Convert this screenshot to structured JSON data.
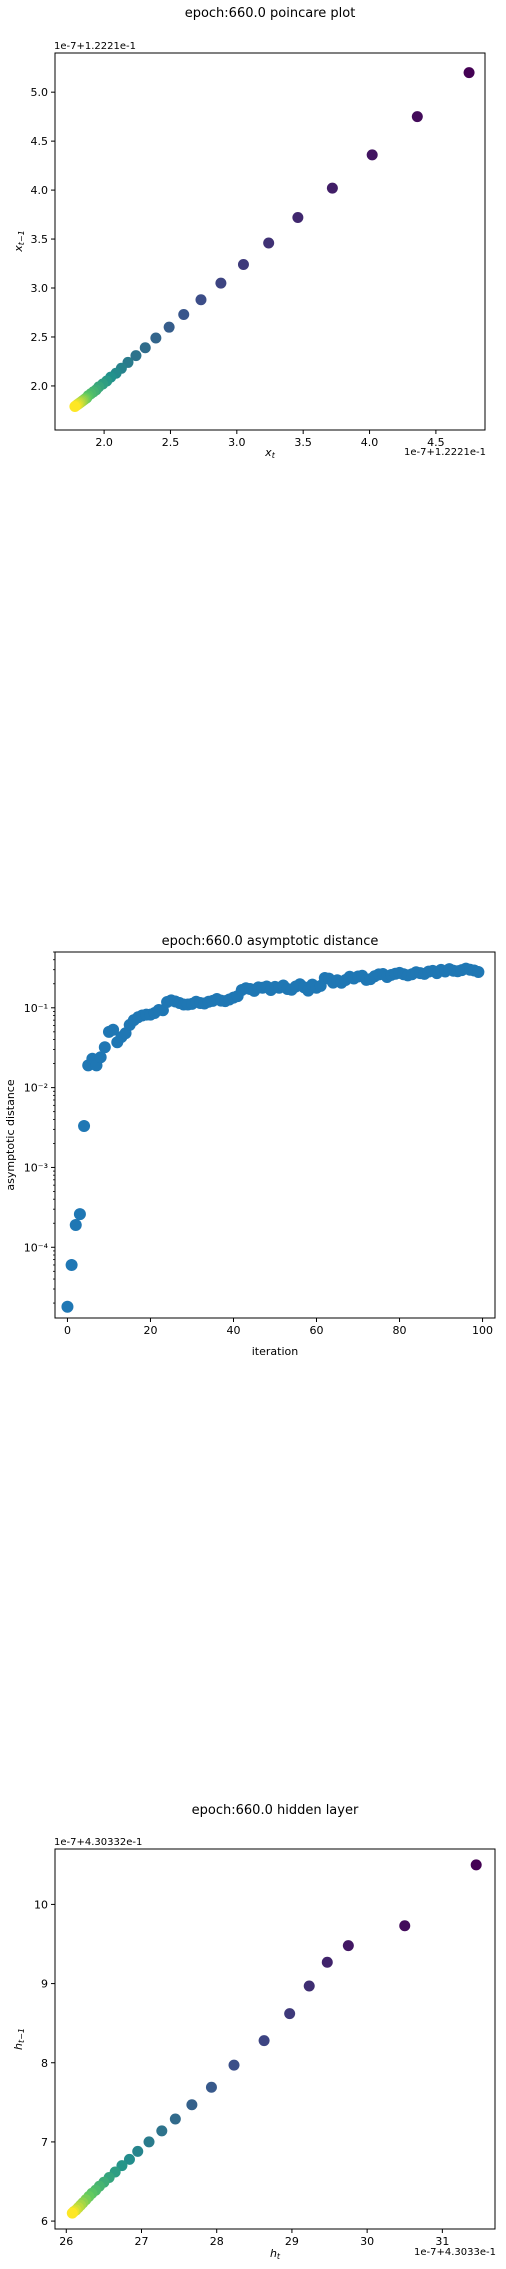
{
  "chart_data": [
    {
      "type": "scatter",
      "title": "epoch:660.0 poincare plot",
      "xlabel": "x_t",
      "ylabel": "x_{t-1}",
      "x_offset_text": "1e-7+1.2221e-1",
      "y_offset_text": "1e-7+1.2221e-1",
      "xlim": [
        1.63,
        4.87
      ],
      "ylim": [
        1.55,
        5.4
      ],
      "xticks": [
        2.0,
        2.5,
        3.0,
        3.5,
        4.0,
        4.5
      ],
      "xtick_labels": [
        "2.0",
        "2.5",
        "3.0",
        "3.5",
        "4.0",
        "4.5"
      ],
      "yticks": [
        2.0,
        2.5,
        3.0,
        3.5,
        4.0,
        4.5,
        5.0
      ],
      "ytick_labels": [
        "2.0",
        "2.5",
        "3.0",
        "3.5",
        "4.0",
        "4.5",
        "5.0"
      ],
      "colormap": "viridis",
      "x": [
        4.75,
        4.36,
        4.02,
        3.72,
        3.46,
        3.24,
        3.05,
        2.88,
        2.73,
        2.6,
        2.49,
        2.39,
        2.31,
        2.24,
        2.18,
        2.13,
        2.09,
        2.05,
        2.02,
        1.99,
        1.96,
        1.94,
        1.92,
        1.9,
        1.88,
        1.87,
        1.86,
        1.85,
        1.84,
        1.83,
        1.82,
        1.81,
        1.8,
        1.79,
        1.78
      ],
      "y": [
        5.2,
        4.75,
        4.36,
        4.02,
        3.72,
        3.46,
        3.24,
        3.05,
        2.88,
        2.73,
        2.6,
        2.49,
        2.39,
        2.31,
        2.24,
        2.18,
        2.13,
        2.09,
        2.05,
        2.02,
        1.99,
        1.96,
        1.94,
        1.92,
        1.9,
        1.88,
        1.87,
        1.86,
        1.85,
        1.84,
        1.83,
        1.82,
        1.81,
        1.8,
        1.79
      ]
    },
    {
      "type": "scatter",
      "title": "epoch:660.0 asymptotic distance",
      "xlabel": "iteration",
      "ylabel": "asymptotic distance",
      "yscale": "log",
      "xlim": [
        -3,
        103
      ],
      "ylim": [
        1.3e-05,
        0.5
      ],
      "xticks": [
        0,
        20,
        40,
        60,
        80,
        100
      ],
      "xtick_labels": [
        "0",
        "20",
        "40",
        "60",
        "80",
        "100"
      ],
      "yticks": [
        0.0001,
        0.001,
        0.01,
        0.1
      ],
      "ytick_labels": [
        "10⁻⁴",
        "10⁻³",
        "10⁻²",
        "10⁻¹"
      ],
      "color": "#1f77b4",
      "x": [
        0,
        1,
        2,
        3,
        4,
        5,
        6,
        7,
        8,
        9,
        10,
        11,
        12,
        13,
        14,
        15,
        16,
        17,
        18,
        19,
        20,
        21,
        22,
        23,
        24,
        25,
        26,
        27,
        28,
        29,
        30,
        31,
        32,
        33,
        34,
        35,
        36,
        37,
        38,
        39,
        40,
        41,
        42,
        43,
        44,
        45,
        46,
        47,
        48,
        49,
        50,
        51,
        52,
        53,
        54,
        55,
        56,
        57,
        58,
        59,
        60,
        61,
        62,
        63,
        64,
        65,
        66,
        67,
        68,
        69,
        70,
        71,
        72,
        73,
        74,
        75,
        76,
        77,
        78,
        79,
        80,
        81,
        82,
        83,
        84,
        85,
        86,
        87,
        88,
        89,
        90,
        91,
        92,
        93,
        94,
        95,
        96,
        97,
        98,
        99
      ],
      "y": [
        1.8e-05,
        6e-05,
        0.00019,
        0.00026,
        0.0033,
        0.019,
        0.023,
        0.019,
        0.024,
        0.032,
        0.05,
        0.053,
        0.037,
        0.043,
        0.048,
        0.061,
        0.07,
        0.076,
        0.08,
        0.082,
        0.082,
        0.086,
        0.094,
        0.093,
        0.118,
        0.124,
        0.12,
        0.115,
        0.11,
        0.11,
        0.112,
        0.119,
        0.115,
        0.113,
        0.119,
        0.122,
        0.129,
        0.123,
        0.121,
        0.127,
        0.134,
        0.14,
        0.167,
        0.176,
        0.172,
        0.163,
        0.18,
        0.178,
        0.185,
        0.167,
        0.183,
        0.178,
        0.19,
        0.172,
        0.168,
        0.185,
        0.197,
        0.181,
        0.164,
        0.195,
        0.178,
        0.188,
        0.236,
        0.232,
        0.207,
        0.221,
        0.206,
        0.223,
        0.245,
        0.233,
        0.247,
        0.252,
        0.224,
        0.229,
        0.248,
        0.262,
        0.265,
        0.243,
        0.258,
        0.267,
        0.274,
        0.263,
        0.255,
        0.263,
        0.279,
        0.272,
        0.266,
        0.284,
        0.29,
        0.272,
        0.299,
        0.285,
        0.305,
        0.291,
        0.287,
        0.296,
        0.309,
        0.3,
        0.293,
        0.281
      ]
    },
    {
      "type": "scatter",
      "title": "epoch:660.0 hidden layer",
      "xlabel": "h_t",
      "ylabel": "h_{t-1}",
      "x_offset_text": "1e-7+4.3033e-1",
      "y_offset_text": "1e-7+4.30332e-1",
      "xlim": [
        25.85,
        31.7
      ],
      "ylim": [
        5.9,
        10.7
      ],
      "xticks": [
        26,
        27,
        28,
        29,
        30,
        31
      ],
      "xtick_labels": [
        "26",
        "27",
        "28",
        "29",
        "30",
        "31"
      ],
      "yticks": [
        6,
        7,
        8,
        9,
        10
      ],
      "ytick_labels": [
        "6",
        "7",
        "8",
        "9",
        "10"
      ],
      "colormap": "viridis",
      "x": [
        31.45,
        30.5,
        29.75,
        29.47,
        29.23,
        28.97,
        28.63,
        28.23,
        27.93,
        27.67,
        27.45,
        27.27,
        27.1,
        26.95,
        26.84,
        26.74,
        26.65,
        26.57,
        26.5,
        26.44,
        26.39,
        26.34,
        26.3,
        26.26,
        26.22,
        26.19,
        26.16,
        26.13,
        26.1,
        26.08
      ],
      "y": [
        10.5,
        9.73,
        9.48,
        9.27,
        8.97,
        8.62,
        8.28,
        7.97,
        7.69,
        7.47,
        7.29,
        7.14,
        7.0,
        6.88,
        6.78,
        6.7,
        6.62,
        6.55,
        6.49,
        6.44,
        6.39,
        6.35,
        6.31,
        6.27,
        6.23,
        6.2,
        6.17,
        6.14,
        6.12,
        6.1
      ]
    }
  ]
}
